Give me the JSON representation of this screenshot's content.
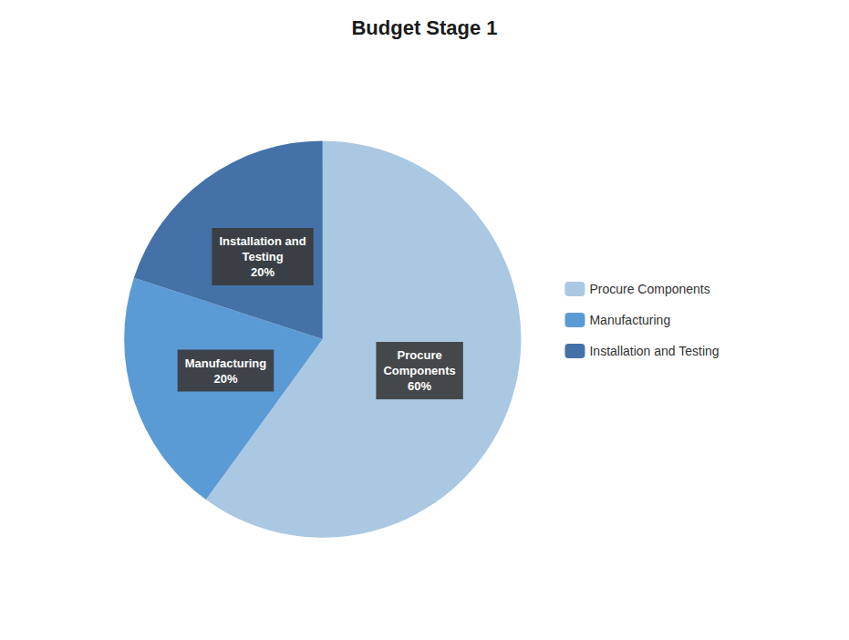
{
  "chart_data": {
    "type": "pie",
    "title": "Budget Stage 1",
    "categories": [
      "Procure Components",
      "Manufacturing",
      "Installation and Testing"
    ],
    "values": [
      60,
      20,
      20
    ],
    "value_labels": [
      "Procure\nComponents\n60%",
      "Manufacturing\n20%",
      "Installation and\nTesting\n20%"
    ],
    "colors": [
      "#abc8e2",
      "#5b9bd5",
      "#4472a8"
    ],
    "data_labels": true,
    "legend": "right"
  }
}
